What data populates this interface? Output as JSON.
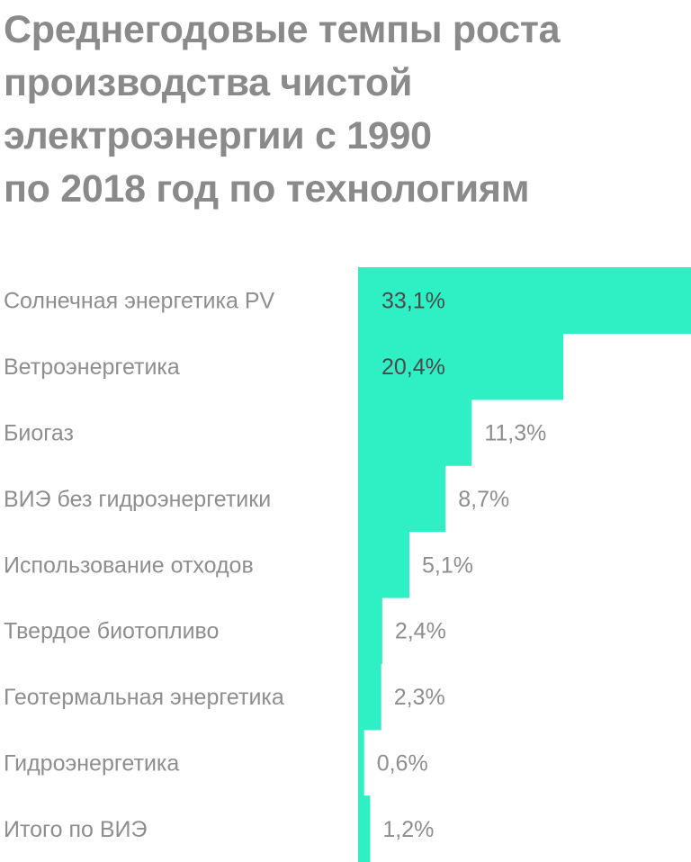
{
  "title_lines": [
    "Среднегодовые темпы роста",
    "производства чистой",
    "электроэнергии с 1990",
    "по 2018 год по технологиям"
  ],
  "colors": {
    "bar": "#2ff0c4",
    "title": "#8a8a8a",
    "label": "#8e8e8e",
    "value_on_bar": "#4a4a4a",
    "value_outside": "#8e8e8e"
  },
  "chart_data": {
    "type": "bar",
    "orientation": "horizontal",
    "title": "Среднегодовые темпы роста производства чистой электроэнергии с 1990 по 2018 год по технологиям",
    "categories": [
      "Солнечная энергетика PV",
      "Ветроэнергетика",
      "Биогаз",
      "ВИЭ без гидроэнергетики",
      "Использование отходов",
      "Твердое биотопливо",
      "Геотермальная энергетика",
      "Гидроэнергетика",
      "Итого по ВИЭ"
    ],
    "values": [
      33.1,
      20.4,
      11.3,
      8.7,
      5.1,
      2.4,
      2.3,
      0.6,
      1.2
    ],
    "value_labels": [
      "33,1%",
      "20,4%",
      "11,3%",
      "8,7%",
      "5,1%",
      "2,4%",
      "2,3%",
      "0,6%",
      "1,2%"
    ],
    "xlim": [
      0,
      33.1
    ],
    "grid": false,
    "legend": "none"
  }
}
